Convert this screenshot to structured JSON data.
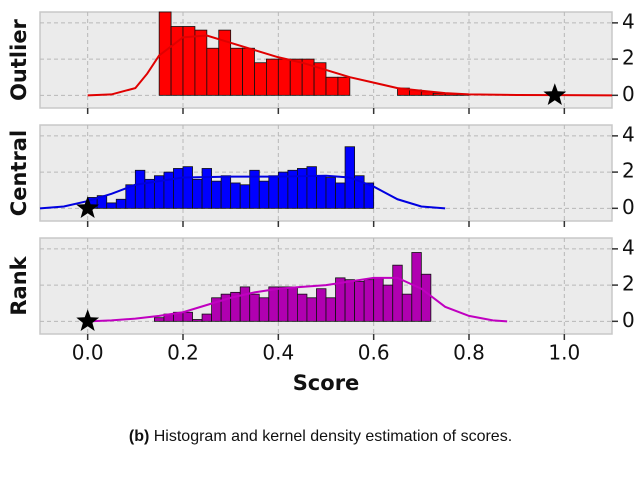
{
  "chart_data": [
    {
      "type": "histogram",
      "ylabel": "Outlier",
      "color": "#ff0000",
      "line_color": "#e00000",
      "bins": [
        0.15,
        0.175,
        0.2,
        0.225,
        0.25,
        0.275,
        0.3,
        0.325,
        0.35,
        0.375,
        0.4,
        0.425,
        0.45,
        0.475,
        0.5,
        0.525,
        0.55,
        0.575,
        0.6,
        0.625,
        0.65,
        0.675,
        0.7,
        0.725,
        0.75,
        0.775,
        0.8
      ],
      "counts": [
        4.6,
        3.8,
        3.8,
        3.6,
        2.6,
        3.6,
        2.6,
        2.6,
        1.8,
        2.0,
        2.0,
        2.0,
        2.0,
        1.8,
        1.0,
        1.0,
        0,
        0,
        0,
        0,
        0.4,
        0.3,
        0.2,
        0.1,
        0.1,
        0.05
      ],
      "kde": {
        "x": [
          0,
          0.05,
          0.1,
          0.125,
          0.15,
          0.2,
          0.25,
          0.3,
          0.35,
          0.4,
          0.45,
          0.5,
          0.55,
          0.6,
          0.65,
          0.7,
          0.75,
          0.8,
          0.9,
          1.0,
          1.1
        ],
        "y": [
          0,
          0.05,
          0.4,
          1.2,
          2.2,
          3.2,
          3.3,
          2.9,
          2.5,
          2.1,
          1.8,
          1.4,
          1.0,
          0.7,
          0.4,
          0.25,
          0.12,
          0.05,
          0.02,
          0.01,
          0
        ]
      },
      "marker": {
        "x": 0.98,
        "y": 0
      },
      "xlim": [
        -0.1,
        1.1
      ],
      "ylim": [
        -0.7,
        4.6
      ],
      "yticks": [
        0,
        2,
        4
      ],
      "xticks": [
        0,
        0.2,
        0.4,
        0.6,
        0.8,
        1
      ],
      "grid": true
    },
    {
      "type": "histogram",
      "ylabel": "Central",
      "color": "#0000ff",
      "line_color": "#0000e0",
      "bins": [
        0,
        0.02,
        0.04,
        0.06,
        0.08,
        0.1,
        0.12,
        0.14,
        0.16,
        0.18,
        0.2,
        0.22,
        0.24,
        0.26,
        0.28,
        0.3,
        0.32,
        0.34,
        0.36,
        0.38,
        0.4,
        0.42,
        0.44,
        0.46,
        0.48,
        0.5,
        0.52,
        0.54,
        0.56,
        0.58,
        0.6
      ],
      "counts": [
        0.6,
        0.7,
        0.3,
        0.5,
        1.3,
        2.1,
        1.6,
        1.8,
        2.0,
        2.2,
        2.3,
        1.6,
        2.2,
        1.5,
        1.8,
        1.4,
        1.3,
        2.1,
        1.5,
        1.8,
        2.0,
        2.1,
        2.2,
        2.3,
        1.8,
        1.7,
        1.4,
        3.4,
        1.8,
        1.4
      ],
      "kde": {
        "x": [
          -0.1,
          -0.05,
          0,
          0.05,
          0.1,
          0.2,
          0.3,
          0.4,
          0.5,
          0.55,
          0.6,
          0.65,
          0.7,
          0.75
        ],
        "y": [
          0,
          0.1,
          0.4,
          0.8,
          1.3,
          1.7,
          1.75,
          1.75,
          1.8,
          1.7,
          1.2,
          0.5,
          0.1,
          0
        ]
      },
      "marker": {
        "x": 0,
        "y": 0
      },
      "xlim": [
        -0.1,
        1.1
      ],
      "ylim": [
        -0.7,
        4.6
      ],
      "yticks": [
        0,
        2,
        4
      ],
      "xticks": [
        0,
        0.2,
        0.4,
        0.6,
        0.8,
        1
      ],
      "grid": true
    },
    {
      "type": "histogram",
      "ylabel": "Rank",
      "xlabel": "Score",
      "color": "#b000b0",
      "line_color": "#c000c0",
      "bins": [
        0.14,
        0.16,
        0.18,
        0.2,
        0.22,
        0.24,
        0.26,
        0.28,
        0.3,
        0.32,
        0.34,
        0.36,
        0.38,
        0.4,
        0.42,
        0.44,
        0.46,
        0.48,
        0.5,
        0.52,
        0.54,
        0.56,
        0.58,
        0.6,
        0.62,
        0.64,
        0.66,
        0.68,
        0.7,
        0.72
      ],
      "counts": [
        0.2,
        0.4,
        0.5,
        0.5,
        0.1,
        0.4,
        1.3,
        1.5,
        1.6,
        1.9,
        1.5,
        1.3,
        1.9,
        1.9,
        1.9,
        1.5,
        1.3,
        1.8,
        1.3,
        2.4,
        2.3,
        2.2,
        2.3,
        2.4,
        2.0,
        3.1,
        1.5,
        3.8,
        2.6
      ],
      "kde": {
        "x": [
          0,
          0.05,
          0.1,
          0.15,
          0.2,
          0.25,
          0.3,
          0.35,
          0.4,
          0.45,
          0.5,
          0.55,
          0.6,
          0.65,
          0.7,
          0.75,
          0.8,
          0.85,
          0.88
        ],
        "y": [
          0,
          0.05,
          0.15,
          0.3,
          0.5,
          0.9,
          1.3,
          1.6,
          1.8,
          1.9,
          2.0,
          2.2,
          2.4,
          2.4,
          1.8,
          0.8,
          0.3,
          0.05,
          0
        ]
      },
      "marker": {
        "x": 0,
        "y": 0
      },
      "xlim": [
        -0.1,
        1.1
      ],
      "ylim": [
        -0.7,
        4.6
      ],
      "yticks": [
        0,
        2,
        4
      ],
      "xticks": [
        {
          "value": 0,
          "label": "0.0"
        },
        {
          "value": 0.2,
          "label": "0.2"
        },
        {
          "value": 0.4,
          "label": "0.4"
        },
        {
          "value": 0.6,
          "label": "0.6"
        },
        {
          "value": 0.8,
          "label": "0.8"
        },
        {
          "value": 1,
          "label": "1.0"
        }
      ],
      "grid": true
    }
  ],
  "caption": {
    "prefix": "(b)",
    "text": "Histogram and kernel density estimation of scores."
  }
}
